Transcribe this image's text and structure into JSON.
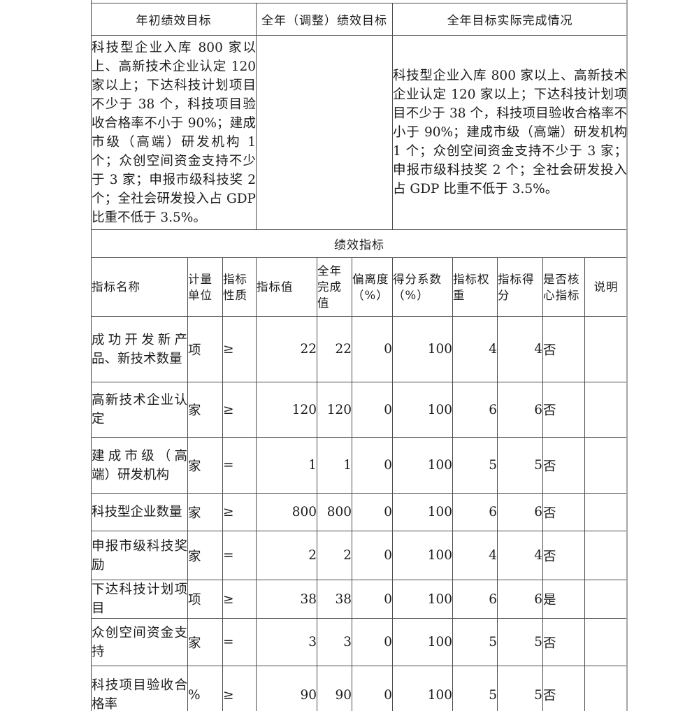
{
  "document": {
    "top_table": {
      "col_headers": [
        "年初绩效目标",
        "全年（调整）绩效目标",
        "全年目标实际完成情况"
      ],
      "year_start_goal_text": "科技型企业入库 800 家以上、高新技术企业认定 120 家以上；下达科技计划项目不少于 38 个，科技项目验收合格率不小于 90%；建成市级（高端）研发机构 1 个；众创空间资金支持不少于 3 家；申报市级科技奖 2 个；全社会研发投入占 GDP 比重不低于 3.5%。",
      "adjusted_goal_text": "",
      "actual_completion_text": "科技型企业入库 800 家以上、高新技术企业认定 120 家以上；下达科技计划项目不少于 38 个，科技项目验收合格率不小于 90%；建成市级（高端）研发机构 1 个；众创空间资金支持不少于 3 家；申报市级科技奖 2 个；全社会研发投入占 GDP 比重不低于 3.5%。"
    },
    "indicator_table": {
      "section_title": "绩效指标",
      "columns": [
        "指标名称",
        "计量单位",
        "指标性质",
        "指标值",
        "全年完成值",
        "偏离度（%）",
        "得分系数（%）",
        "指标权重",
        "指标得分",
        "是否核心指标",
        "说明"
      ],
      "rows": [
        {
          "name": "成功开发新产品、新技术数量",
          "unit": "项",
          "nature": "≥",
          "target": "22",
          "completed": "22",
          "deviation": "0",
          "score_coefficient": "100",
          "weight": "4",
          "score": "4",
          "is_core": "否",
          "note": ""
        },
        {
          "name": "高新技术企业认定",
          "unit": "家",
          "nature": "≥",
          "target": "120",
          "completed": "120",
          "deviation": "0",
          "score_coefficient": "100",
          "weight": "6",
          "score": "6",
          "is_core": "否",
          "note": ""
        },
        {
          "name": "建成市级（高端）研发机构",
          "unit": "家",
          "nature": "=",
          "target": "1",
          "completed": "1",
          "deviation": "0",
          "score_coefficient": "100",
          "weight": "5",
          "score": "5",
          "is_core": "否",
          "note": ""
        },
        {
          "name": "科技型企业数量",
          "unit": "家",
          "nature": "≥",
          "target": "800",
          "completed": "800",
          "deviation": "0",
          "score_coefficient": "100",
          "weight": "6",
          "score": "6",
          "is_core": "否",
          "note": ""
        },
        {
          "name": "申报市级科技奖励",
          "unit": "家",
          "nature": "=",
          "target": "2",
          "completed": "2",
          "deviation": "0",
          "score_coefficient": "100",
          "weight": "4",
          "score": "4",
          "is_core": "否",
          "note": ""
        },
        {
          "name": "下达科技计划项目",
          "unit": "项",
          "nature": "≥",
          "target": "38",
          "completed": "38",
          "deviation": "0",
          "score_coefficient": "100",
          "weight": "6",
          "score": "6",
          "is_core": "是",
          "note": ""
        },
        {
          "name": "众创空间资金支持",
          "unit": "家",
          "nature": "=",
          "target": "3",
          "completed": "3",
          "deviation": "0",
          "score_coefficient": "100",
          "weight": "5",
          "score": "5",
          "is_core": "否",
          "note": ""
        },
        {
          "name": "科技项目验收合格率",
          "unit": "%",
          "nature": "≥",
          "target": "90",
          "completed": "90",
          "deviation": "0",
          "score_coefficient": "100",
          "weight": "5",
          "score": "5",
          "is_core": "否",
          "note": ""
        }
      ]
    }
  },
  "colors": {
    "border": "#4d4d4d",
    "outer_right_border": "#a6a6a6",
    "text": "#1c1c1c",
    "background": "#ffffff"
  }
}
